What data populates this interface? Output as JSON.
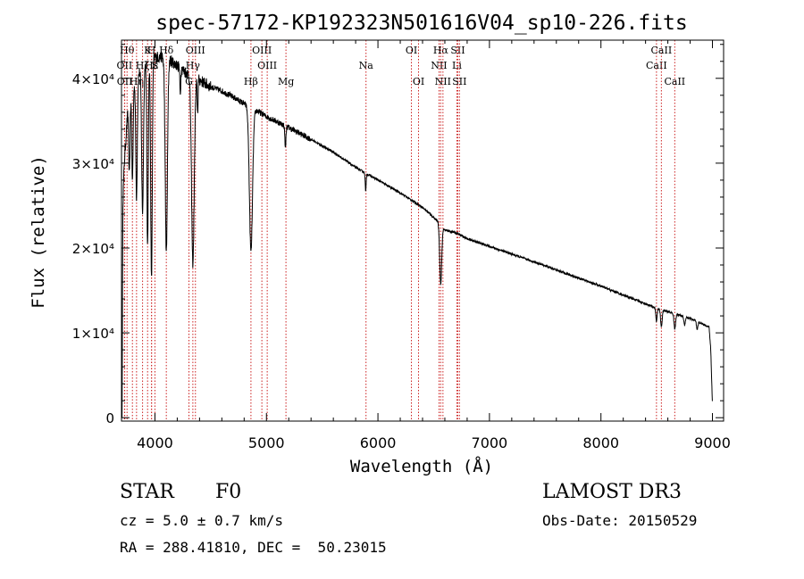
{
  "chart_data": {
    "type": "line",
    "title": "spec-57172-KP192323N501616V04_sp10-226.fits",
    "xlabel": "Wavelength (Å)",
    "ylabel": "Flux (relative)",
    "xlim": [
      3700,
      9100
    ],
    "ylim": [
      -400,
      44500
    ],
    "xticks": [
      4000,
      5000,
      6000,
      7000,
      8000,
      9000
    ],
    "xtick_labels": [
      "4000",
      "5000",
      "6000",
      "7000",
      "8000",
      "9000"
    ],
    "yticks": [
      0,
      10000,
      20000,
      30000,
      40000
    ],
    "ytick_labels": [
      "0",
      "1×10⁴",
      "2×10⁴",
      "3×10⁴",
      "4×10⁴"
    ],
    "continuum": [
      [
        3705,
        0
      ],
      [
        3712,
        25000
      ],
      [
        3725,
        30000
      ],
      [
        3760,
        37000
      ],
      [
        3800,
        39000
      ],
      [
        3850,
        40500
      ],
      [
        3900,
        41500
      ],
      [
        3950,
        42000
      ],
      [
        4000,
        42500
      ],
      [
        4100,
        42500
      ],
      [
        4200,
        41500
      ],
      [
        4300,
        40500
      ],
      [
        4400,
        39800
      ],
      [
        4500,
        39000
      ],
      [
        4600,
        38500
      ],
      [
        4700,
        37800
      ],
      [
        4800,
        37000
      ],
      [
        4900,
        36300
      ],
      [
        5000,
        35500
      ],
      [
        5200,
        34200
      ],
      [
        5400,
        32800
      ],
      [
        5600,
        31300
      ],
      [
        5800,
        29500
      ],
      [
        6000,
        28000
      ],
      [
        6200,
        26500
      ],
      [
        6400,
        24800
      ],
      [
        6550,
        23000
      ],
      [
        6600,
        22100
      ],
      [
        6700,
        21800
      ],
      [
        6800,
        21100
      ],
      [
        7000,
        20200
      ],
      [
        7500,
        17900
      ],
      [
        8000,
        15500
      ],
      [
        8500,
        12900
      ],
      [
        8800,
        11700
      ],
      [
        8970,
        10700
      ],
      [
        8985,
        8000
      ],
      [
        9000,
        1500
      ]
    ],
    "absorption": [
      {
        "center": 3770,
        "depth": 9000,
        "width": 6
      },
      {
        "center": 3798,
        "depth": 11000,
        "width": 6
      },
      {
        "center": 3835,
        "depth": 14000,
        "width": 7
      },
      {
        "center": 3889,
        "depth": 17000,
        "width": 8
      },
      {
        "center": 3934,
        "depth": 22000,
        "width": 6
      },
      {
        "center": 3969,
        "depth": 26000,
        "width": 7
      },
      {
        "center": 4102,
        "depth": 23000,
        "width": 10
      },
      {
        "center": 4227,
        "depth": 3000,
        "width": 4
      },
      {
        "center": 4340,
        "depth": 22000,
        "width": 12
      },
      {
        "center": 4383,
        "depth": 4000,
        "width": 4
      },
      {
        "center": 4861,
        "depth": 17000,
        "width": 14
      },
      {
        "center": 5170,
        "depth": 2500,
        "width": 5
      },
      {
        "center": 5890,
        "depth": 2200,
        "width": 4
      },
      {
        "center": 6563,
        "depth": 7000,
        "width": 9
      },
      {
        "center": 8498,
        "depth": 1500,
        "width": 6
      },
      {
        "center": 8542,
        "depth": 2000,
        "width": 7
      },
      {
        "center": 8662,
        "depth": 1800,
        "width": 7
      },
      {
        "center": 8750,
        "depth": 1000,
        "width": 6
      },
      {
        "center": 8863,
        "depth": 1000,
        "width": 6
      }
    ],
    "line_markers": [
      {
        "wavelength": 3750,
        "label": "Hθ",
        "row": 0
      },
      {
        "wavelength": 3727,
        "label": "OII",
        "row": 1
      },
      {
        "wavelength": 3729,
        "label": "OII",
        "row": 2
      },
      {
        "wavelength": 3798,
        "label": "",
        "row": 0
      },
      {
        "wavelength": 3835,
        "label": "Hη",
        "row": 2
      },
      {
        "wavelength": 3889,
        "label": "Hζ",
        "row": 1
      },
      {
        "wavelength": 3934,
        "label": "K",
        "row": 0
      },
      {
        "wavelength": 3969,
        "label": "H",
        "row": 0
      },
      {
        "wavelength": 3970,
        "label": "Hε",
        "row": 1
      },
      {
        "wavelength": 4000,
        "label": "S",
        "row": 1
      },
      {
        "wavelength": 4102,
        "label": "Hδ",
        "row": 0
      },
      {
        "wavelength": 4305,
        "label": "G",
        "row": 2
      },
      {
        "wavelength": 4340,
        "label": "Hγ",
        "row": 1
      },
      {
        "wavelength": 4363,
        "label": "OIII",
        "row": 0
      },
      {
        "wavelength": 4861,
        "label": "Hβ",
        "row": 2
      },
      {
        "wavelength": 4959,
        "label": "OIII",
        "row": 0
      },
      {
        "wavelength": 5007,
        "label": "OIII",
        "row": 1
      },
      {
        "wavelength": 5175,
        "label": "Mg",
        "row": 2
      },
      {
        "wavelength": 5893,
        "label": "Na",
        "row": 1
      },
      {
        "wavelength": 6300,
        "label": "OI",
        "row": 0
      },
      {
        "wavelength": 6364,
        "label": "OI",
        "row": 2
      },
      {
        "wavelength": 6548,
        "label": "NII",
        "row": 1
      },
      {
        "wavelength": 6563,
        "label": "Hα",
        "row": 0
      },
      {
        "wavelength": 6583,
        "label": "NII",
        "row": 2
      },
      {
        "wavelength": 6708,
        "label": "Li",
        "row": 1
      },
      {
        "wavelength": 6716,
        "label": "SII",
        "row": 0
      },
      {
        "wavelength": 6731,
        "label": "SII",
        "row": 2
      },
      {
        "wavelength": 8498,
        "label": "CaII",
        "row": 1
      },
      {
        "wavelength": 8542,
        "label": "CaII",
        "row": 0
      },
      {
        "wavelength": 8662,
        "label": "CaII",
        "row": 2
      }
    ],
    "line_color": "#000000",
    "marker_color": "#cc2222",
    "grid": false
  },
  "info": {
    "object_class": "STAR",
    "subclass": "F0",
    "survey": "LAMOST DR3",
    "cz": "cz = 5.0 ± 0.7 km/s",
    "obs_date": "Obs-Date: 20150529",
    "coords": "RA = 288.41810, DEC =  50.23015"
  }
}
